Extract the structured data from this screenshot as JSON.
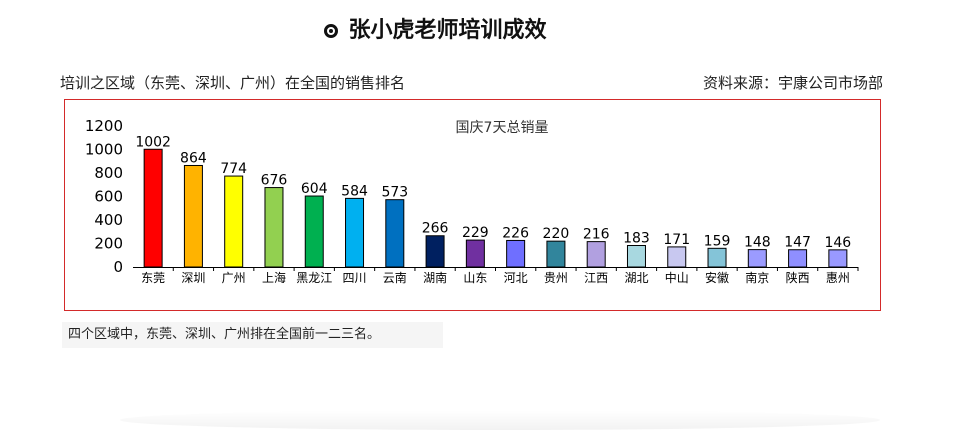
{
  "header": {
    "title": "张小虎老师培训成效",
    "title_icon": "target-icon"
  },
  "subtitle": {
    "left": "培训之区域（东莞、深圳、广州）在全国的销售排名",
    "right": "资料来源：宇康公司市场部"
  },
  "note": "四个区域中，东莞、深圳、广州排在全国前一二三名。",
  "chart_data": {
    "type": "bar",
    "title": "国庆7天总销量",
    "xlabel": "",
    "ylabel": "",
    "ylim": [
      0,
      1200
    ],
    "yticks": [
      0,
      200,
      400,
      600,
      800,
      1000,
      1200
    ],
    "grid": false,
    "categories": [
      "东莞",
      "深圳",
      "广州",
      "上海",
      "黑龙江",
      "四川",
      "云南",
      "湖南",
      "山东",
      "河北",
      "贵州",
      "江西",
      "湖北",
      "中山",
      "安徽",
      "南京",
      "陕西",
      "惠州"
    ],
    "values": [
      1002,
      864,
      774,
      676,
      604,
      584,
      573,
      266,
      229,
      226,
      220,
      216,
      183,
      171,
      159,
      148,
      147,
      146
    ],
    "colors": [
      "#ff0000",
      "#ffb300",
      "#ffff00",
      "#92d050",
      "#00b050",
      "#00b0f0",
      "#0070c0",
      "#002060",
      "#7030a0",
      "#6f6fff",
      "#31859c",
      "#b1a0e0",
      "#a8d8e0",
      "#c8c8f0",
      "#84c4d8",
      "#9b9bff",
      "#8f8fff",
      "#9999ff"
    ]
  }
}
